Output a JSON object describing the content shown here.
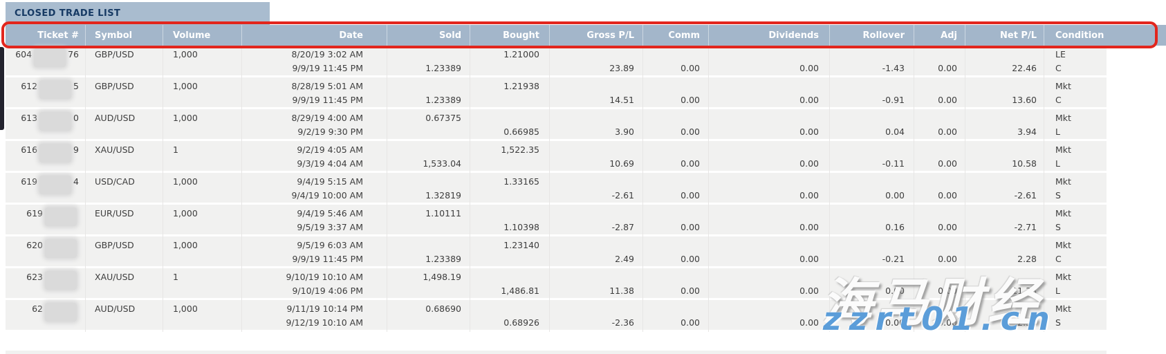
{
  "tab": {
    "title": "CLOSED TRADE LIST"
  },
  "colors": {
    "header_bg": "#a3b6ca",
    "tab_bg": "#a9bccf",
    "row_bg": "#f1f1f0",
    "annotation_red": "#e2261d",
    "tab_text": "#173a64",
    "body_text": "#3d3d3d",
    "watermark_blue": "#5b9dd9"
  },
  "watermark": {
    "brand": "海马财经",
    "site": "zzrt01.cn"
  },
  "table": {
    "columns": [
      {
        "id": "ticket",
        "label": "Ticket #"
      },
      {
        "id": "symbol",
        "label": "Symbol"
      },
      {
        "id": "volume",
        "label": "Volume"
      },
      {
        "id": "date",
        "label": "Date"
      },
      {
        "id": "sold",
        "label": "Sold"
      },
      {
        "id": "bought",
        "label": "Bought"
      },
      {
        "id": "gross_pl",
        "label": "Gross P/L"
      },
      {
        "id": "comm",
        "label": "Comm"
      },
      {
        "id": "dividends",
        "label": "Dividends"
      },
      {
        "id": "rollover",
        "label": "Rollover"
      },
      {
        "id": "adj",
        "label": "Adj"
      },
      {
        "id": "net_pl",
        "label": "Net P/L"
      },
      {
        "id": "condition",
        "label": "Condition"
      }
    ],
    "rows": [
      {
        "ticket_prefix": "604",
        "ticket_suffix": "76",
        "symbol": "GBP/USD",
        "volume": "1,000",
        "date_open": "8/20/19 3:02 AM",
        "date_close": "9/9/19 11:45 PM",
        "sold_open": "",
        "sold_close": "1.23389",
        "bought_open": "1.21000",
        "bought_close": "",
        "gross_pl": "23.89",
        "comm": "0.00",
        "dividends": "0.00",
        "rollover": "-1.43",
        "adj": "0.00",
        "net_pl": "22.46",
        "condition_open": "LE",
        "condition_close": "C"
      },
      {
        "ticket_prefix": "612",
        "ticket_suffix": "5",
        "symbol": "GBP/USD",
        "volume": "1,000",
        "date_open": "8/28/19 5:01 AM",
        "date_close": "9/9/19 11:45 PM",
        "sold_open": "",
        "sold_close": "1.23389",
        "bought_open": "1.21938",
        "bought_close": "",
        "gross_pl": "14.51",
        "comm": "0.00",
        "dividends": "0.00",
        "rollover": "-0.91",
        "adj": "0.00",
        "net_pl": "13.60",
        "condition_open": "Mkt",
        "condition_close": "C"
      },
      {
        "ticket_prefix": "613",
        "ticket_suffix": "0",
        "symbol": "AUD/USD",
        "volume": "1,000",
        "date_open": "8/29/19 4:00 AM",
        "date_close": "9/2/19 9:30 PM",
        "sold_open": "0.67375",
        "sold_close": "",
        "bought_open": "",
        "bought_close": "0.66985",
        "gross_pl": "3.90",
        "comm": "0.00",
        "dividends": "0.00",
        "rollover": "0.04",
        "adj": "0.00",
        "net_pl": "3.94",
        "condition_open": "Mkt",
        "condition_close": "L"
      },
      {
        "ticket_prefix": "616",
        "ticket_suffix": "9",
        "symbol": "XAU/USD",
        "volume": "1",
        "date_open": "9/2/19 4:05 AM",
        "date_close": "9/3/19 4:04 AM",
        "sold_open": "",
        "sold_close": "1,533.04",
        "bought_open": "1,522.35",
        "bought_close": "",
        "gross_pl": "10.69",
        "comm": "0.00",
        "dividends": "0.00",
        "rollover": "-0.11",
        "adj": "0.00",
        "net_pl": "10.58",
        "condition_open": "Mkt",
        "condition_close": "L"
      },
      {
        "ticket_prefix": "619",
        "ticket_suffix": "4",
        "symbol": "USD/CAD",
        "volume": "1,000",
        "date_open": "9/4/19 5:15 AM",
        "date_close": "9/4/19 10:00 AM",
        "sold_open": "",
        "sold_close": "1.32819",
        "bought_open": "1.33165",
        "bought_close": "",
        "gross_pl": "-2.61",
        "comm": "0.00",
        "dividends": "0.00",
        "rollover": "0.00",
        "adj": "0.00",
        "net_pl": "-2.61",
        "condition_open": "Mkt",
        "condition_close": "S"
      },
      {
        "ticket_prefix": "619",
        "ticket_suffix": "",
        "symbol": "EUR/USD",
        "volume": "1,000",
        "date_open": "9/4/19 5:46 AM",
        "date_close": "9/5/19 3:37 AM",
        "sold_open": "1.10111",
        "sold_close": "",
        "bought_open": "",
        "bought_close": "1.10398",
        "gross_pl": "-2.87",
        "comm": "0.00",
        "dividends": "0.00",
        "rollover": "0.16",
        "adj": "0.00",
        "net_pl": "-2.71",
        "condition_open": "Mkt",
        "condition_close": "S"
      },
      {
        "ticket_prefix": "620",
        "ticket_suffix": "",
        "symbol": "GBP/USD",
        "volume": "1,000",
        "date_open": "9/5/19 6:03 AM",
        "date_close": "9/9/19 11:45 PM",
        "sold_open": "",
        "sold_close": "1.23389",
        "bought_open": "1.23140",
        "bought_close": "",
        "gross_pl": "2.49",
        "comm": "0.00",
        "dividends": "0.00",
        "rollover": "-0.21",
        "adj": "0.00",
        "net_pl": "2.28",
        "condition_open": "Mkt",
        "condition_close": "C"
      },
      {
        "ticket_prefix": "623",
        "ticket_suffix": "",
        "symbol": "XAU/USD",
        "volume": "1",
        "date_open": "9/10/19 10:10 AM",
        "date_close": "9/10/19 4:06 PM",
        "sold_open": "1,498.19",
        "sold_close": "",
        "bought_open": "",
        "bought_close": "1,486.81",
        "gross_pl": "11.38",
        "comm": "0.00",
        "dividends": "0.00",
        "rollover": "0.00",
        "adj": "0.00",
        "net_pl": "11.38",
        "condition_open": "Mkt",
        "condition_close": "L"
      },
      {
        "ticket_prefix": "62",
        "ticket_suffix": "",
        "symbol": "AUD/USD",
        "volume": "1,000",
        "date_open": "9/11/19 10:14 PM",
        "date_close": "9/12/19 10:10 AM",
        "sold_open": "0.68690",
        "sold_close": "",
        "bought_open": "",
        "bought_close": "0.68926",
        "gross_pl": "-2.36",
        "comm": "0.00",
        "dividends": "0.00",
        "rollover": "0.00",
        "adj": "0.00",
        "net_pl": "-2.36",
        "condition_open": "Mkt",
        "condition_close": "S"
      }
    ]
  }
}
